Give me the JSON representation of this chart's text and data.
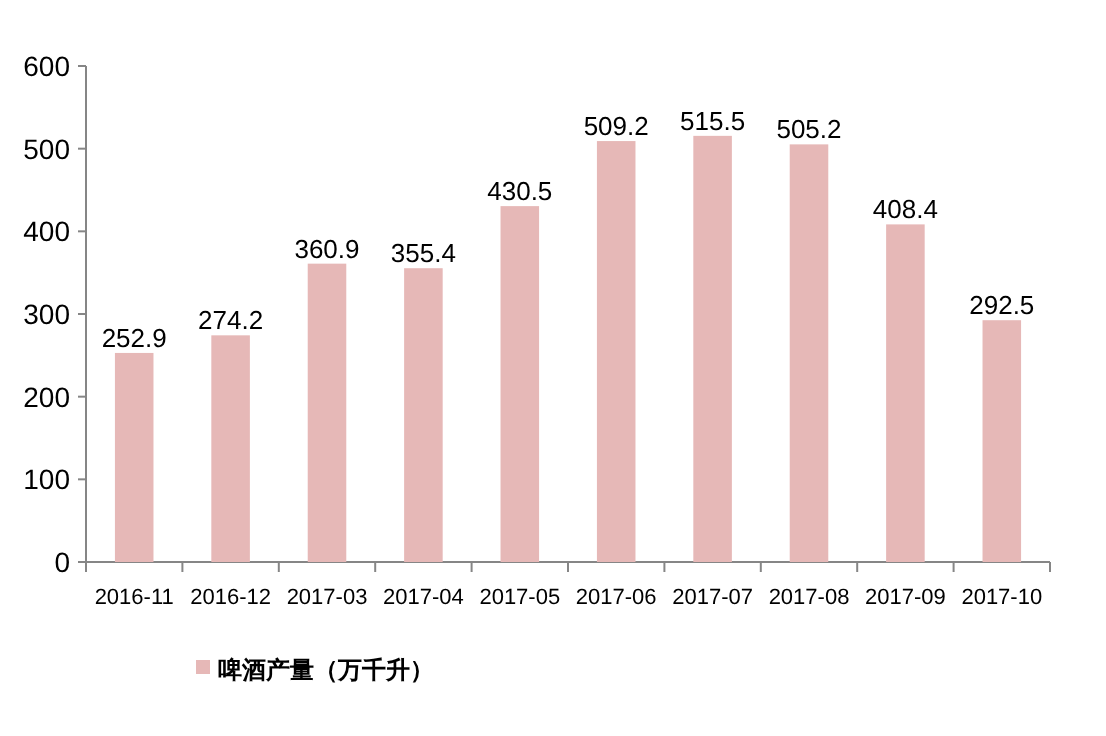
{
  "chart_data": {
    "type": "bar",
    "categories": [
      "2016-11",
      "2016-12",
      "2017-03",
      "2017-04",
      "2017-05",
      "2017-06",
      "2017-07",
      "2017-08",
      "2017-09",
      "2017-10"
    ],
    "series": [
      {
        "name": "啤酒产量（万千升）",
        "color": "#e6b8b7",
        "values": [
          252.9,
          274.2,
          360.9,
          355.4,
          430.5,
          509.2,
          515.5,
          505.2,
          408.4,
          292.5
        ]
      }
    ],
    "ylim": [
      0,
      600
    ],
    "yticks": [
      0,
      100,
      200,
      300,
      400,
      500,
      600
    ],
    "data_labels": true,
    "legend": "bottom"
  }
}
